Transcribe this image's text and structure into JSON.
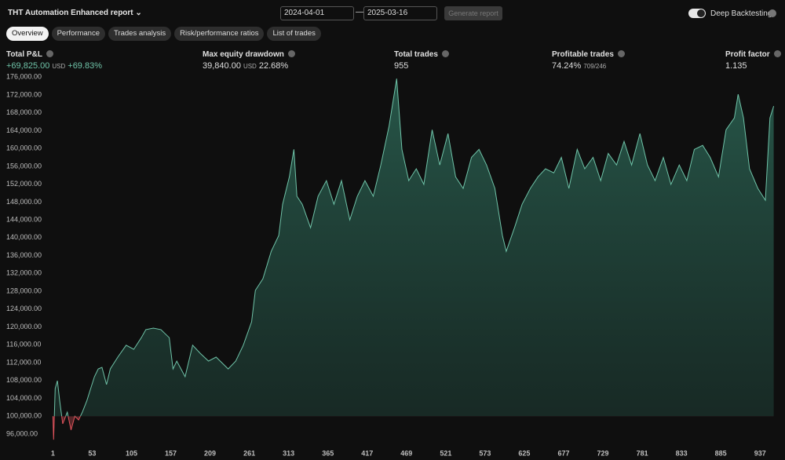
{
  "header": {
    "title": "THT Automation Enhanced report",
    "date_from": "2024-04-01",
    "date_separator": "—",
    "date_to": "2025-03-16",
    "button": "Generate report",
    "toggle": "Deep Backtesting"
  },
  "tabs": [
    "Overview",
    "Performance",
    "Trades analysis",
    "Risk/performance ratios",
    "List of trades"
  ],
  "stats": [
    {
      "label": "Total P&L",
      "value": "+69,825.00",
      "unit": "USD",
      "extra": "+69.83%"
    },
    {
      "label": "Max equity drawdown",
      "value": "39,840.00",
      "unit": "USD",
      "extra": "22.68%"
    },
    {
      "label": "Total trades",
      "value": "955"
    },
    {
      "label": "Profitable trades",
      "value": "74.24%",
      "extra": "709/246"
    },
    {
      "label": "Profit factor",
      "value": "1.135"
    }
  ],
  "chart_data": {
    "type": "area",
    "baseline": 100000,
    "color": "#6fc3a8",
    "negative_color": "#e0535c",
    "x": [
      1,
      2,
      4,
      7,
      10,
      14,
      20,
      25,
      30,
      35,
      40,
      46,
      51,
      56,
      61,
      66,
      72,
      77,
      87,
      98,
      108,
      118,
      124,
      134,
      144,
      155,
      160,
      165,
      176,
      186,
      196,
      207,
      217,
      233,
      243,
      253,
      264,
      269,
      279,
      290,
      300,
      305,
      314,
      320,
      324,
      331,
      342,
      352,
      363,
      373,
      383,
      394,
      404,
      414,
      425,
      435,
      446,
      456,
      463,
      472,
      482,
      492,
      503,
      513,
      524,
      534,
      544,
      555,
      565,
      575,
      586,
      596,
      601,
      612,
      622,
      633,
      643,
      653,
      664,
      674,
      684,
      695,
      705,
      716,
      726,
      736,
      747,
      757,
      767,
      778,
      788,
      798,
      809,
      819,
      830,
      840,
      850,
      861,
      871,
      882,
      892,
      903,
      908,
      915,
      923,
      934,
      944,
      950,
      955
    ],
    "values": [
      100000,
      94750,
      106200,
      107950,
      103500,
      98300,
      100900,
      96900,
      100000,
      99150,
      100900,
      103500,
      106200,
      108850,
      110600,
      110950,
      107100,
      110600,
      113250,
      115900,
      115000,
      117600,
      119400,
      119750,
      119400,
      117600,
      110600,
      112350,
      108850,
      115900,
      114100,
      112350,
      113250,
      110600,
      112350,
      115900,
      121150,
      128200,
      130800,
      136950,
      140500,
      147500,
      153650,
      159800,
      149300,
      147500,
      142250,
      149300,
      152800,
      147500,
      152800,
      144000,
      149300,
      152800,
      149300,
      156300,
      165100,
      175650,
      159800,
      152800,
      155450,
      151950,
      164200,
      156300,
      163350,
      153650,
      151050,
      158000,
      159800,
      156300,
      151050,
      140500,
      136950,
      142250,
      147500,
      151050,
      153650,
      155450,
      154550,
      158000,
      151050,
      159800,
      155450,
      158000,
      152800,
      158900,
      156300,
      161600,
      156300,
      163350,
      156300,
      152800,
      158000,
      151950,
      156300,
      152800,
      159800,
      160700,
      158000,
      153650,
      164200,
      166850,
      172150,
      166850,
      155450,
      151050,
      148400,
      166850,
      169500
    ],
    "xlim": [
      -69,
      970
    ],
    "xticks": [
      1,
      53,
      105,
      157,
      209,
      261,
      313,
      365,
      417,
      469,
      521,
      573,
      625,
      677,
      729,
      781,
      833,
      885,
      937
    ],
    "ylim": [
      93000,
      177800
    ],
    "yticks": [
      {
        "value": 96000,
        "label": "96,000.00"
      },
      {
        "value": 100000,
        "label": "100,000.00"
      },
      {
        "value": 104000,
        "label": "104,000.00"
      },
      {
        "value": 108000,
        "label": "108,000.00"
      },
      {
        "value": 112000,
        "label": "112,000.00"
      },
      {
        "value": 116000,
        "label": "116,000.00"
      },
      {
        "value": 120000,
        "label": "120,000.00"
      },
      {
        "value": 124000,
        "label": "124,000.00"
      },
      {
        "value": 128000,
        "label": "128,000.00"
      },
      {
        "value": 132000,
        "label": "132,000.00"
      },
      {
        "value": 136000,
        "label": "136,000.00"
      },
      {
        "value": 140000,
        "label": "140,000.00"
      },
      {
        "value": 144000,
        "label": "144,000.00"
      },
      {
        "value": 148000,
        "label": "148,000.00"
      },
      {
        "value": 152000,
        "label": "152,000.00"
      },
      {
        "value": 156000,
        "label": "156,000.00"
      },
      {
        "value": 160000,
        "label": "160,000.00"
      },
      {
        "value": 164000,
        "label": "164,000.00"
      },
      {
        "value": 168000,
        "label": "168,000.00"
      },
      {
        "value": 172000,
        "label": "172,000.00"
      },
      {
        "value": 176000,
        "label": "176,000.00"
      }
    ]
  }
}
